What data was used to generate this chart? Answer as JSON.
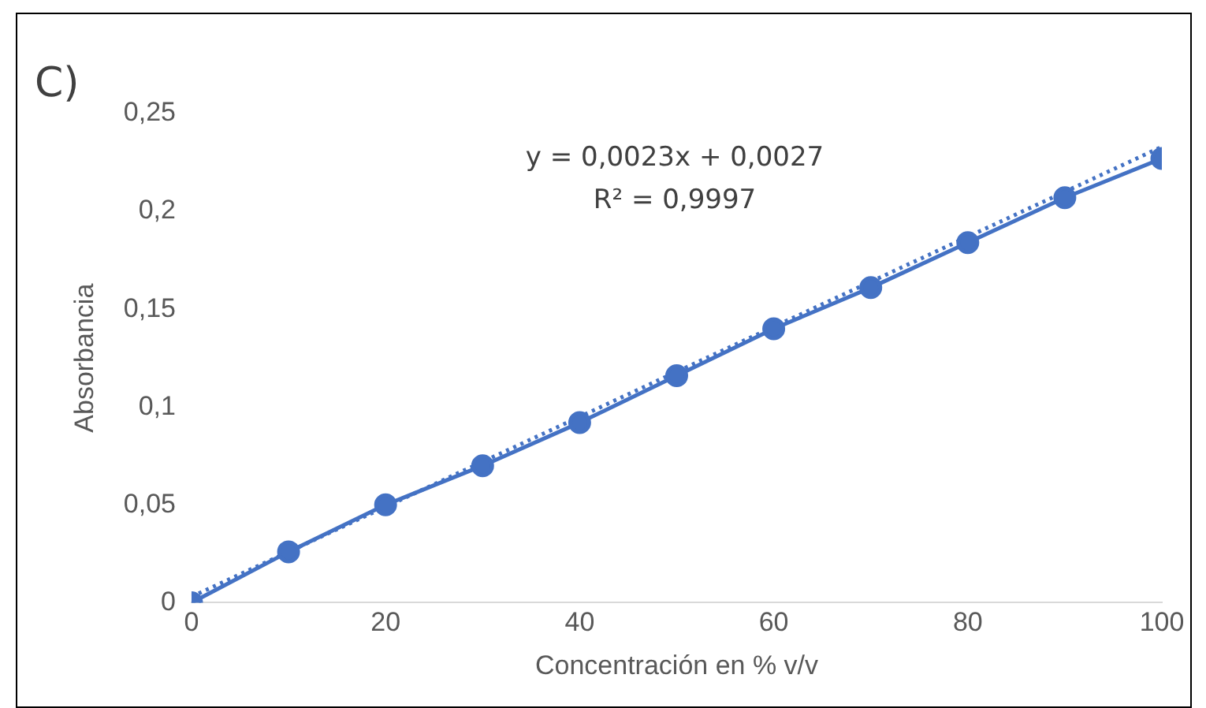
{
  "chart_data": {
    "type": "line",
    "xlabel": "Concentración en % v/v",
    "ylabel": "Absorbancia",
    "annotations": [
      "C)",
      "y = 0,0023x + 0,0027",
      "R² = 0,9997"
    ],
    "xlim": [
      0,
      100
    ],
    "xticks": [
      0,
      20,
      40,
      60,
      80,
      100
    ],
    "ylim": [
      0,
      0.25
    ],
    "yticks": [
      0,
      {
        "value": 0.05,
        "label": "0,05"
      },
      {
        "value": 0.1,
        "label": "0,1"
      },
      {
        "value": 0.15,
        "label": "0,15"
      },
      {
        "value": 0.2,
        "label": "0,2"
      },
      {
        "value": 0.25,
        "label": "0,25"
      }
    ],
    "grid": false,
    "legend": false,
    "marker": "circle",
    "series": [
      {
        "color": "#4472c4",
        "x": [
          0,
          10,
          20,
          30,
          40,
          50,
          60,
          70,
          80,
          90,
          100
        ],
        "values": [
          0,
          0.026,
          0.05,
          0.07,
          0.092,
          0.116,
          0.14,
          0.161,
          0.184,
          0.207,
          0.227
        ],
        "line_style": "solid"
      },
      {
        "color": "#4472c4",
        "x": [
          0,
          100
        ],
        "values": [
          0.003,
          0.233
        ],
        "line_style": "dotted",
        "marker": "none"
      }
    ]
  }
}
